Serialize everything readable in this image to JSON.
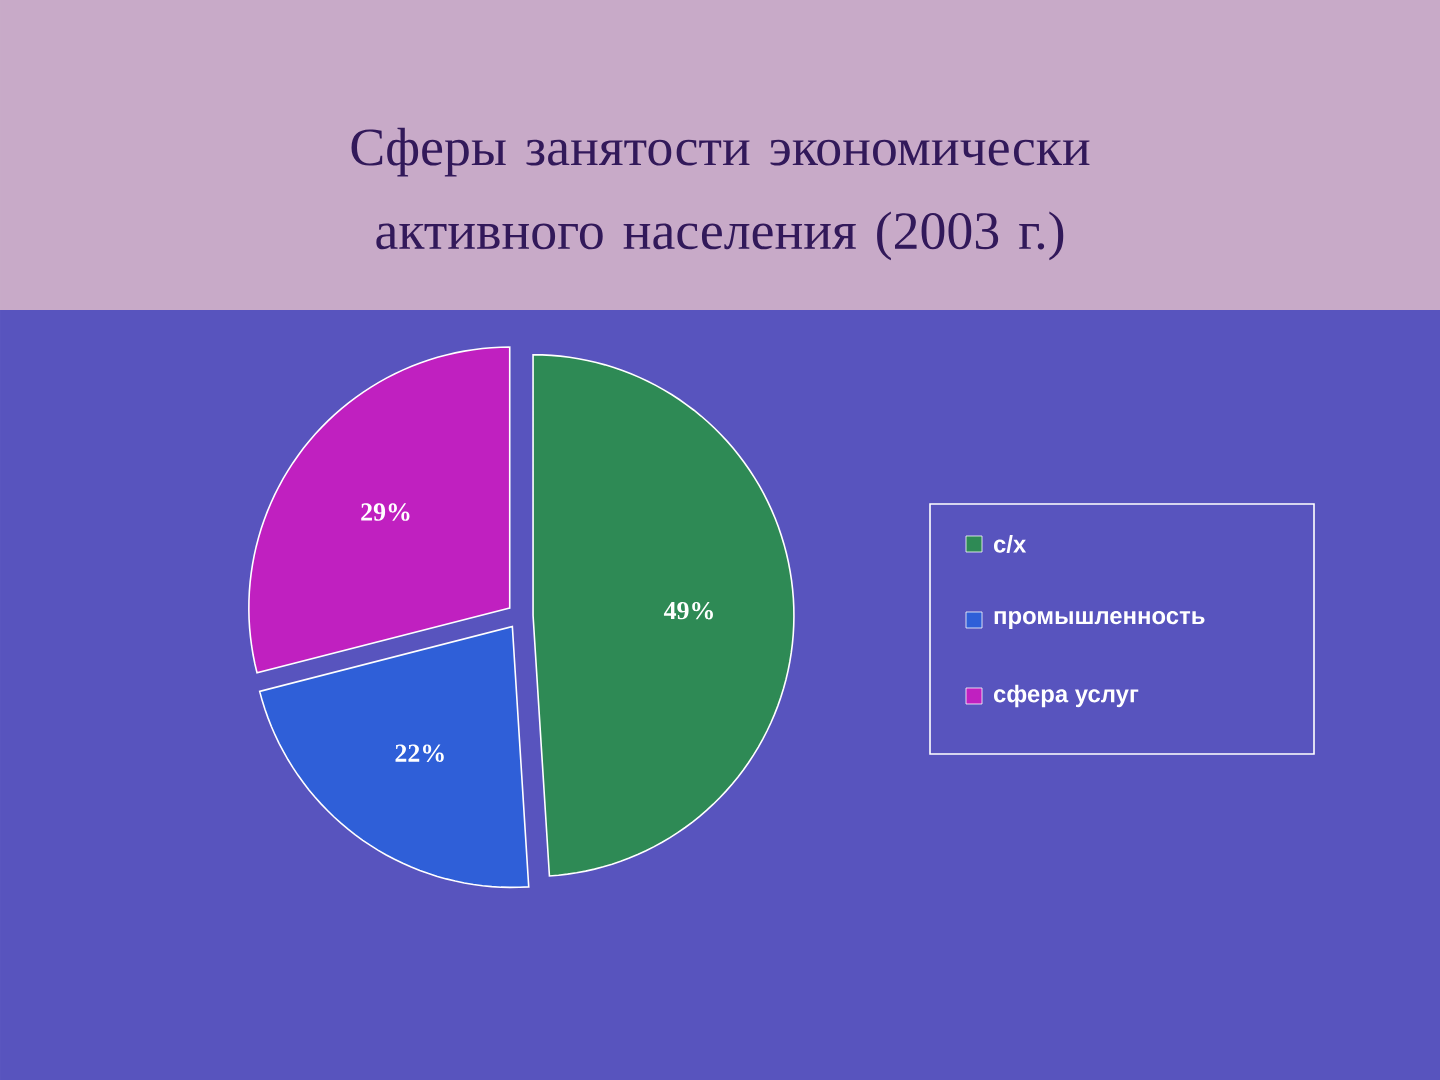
{
  "chart_data": {
    "type": "pie",
    "title": "Сферы занятости экономически активного населения (2003 г.)",
    "categories": [
      "с/х",
      "промышленность",
      "сфера услуг"
    ],
    "values": [
      49,
      22,
      29
    ],
    "colors": [
      "#2e8a55",
      "#2f5fd8",
      "#c020c0"
    ],
    "value_labels": [
      "49%",
      "22%",
      "29%"
    ],
    "legend": "right"
  }
}
